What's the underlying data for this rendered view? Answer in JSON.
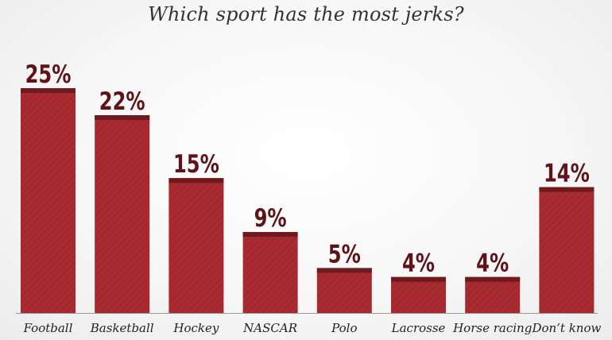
{
  "chart_data": {
    "type": "bar",
    "title": "Which sport has the most jerks?",
    "categories": [
      "Football",
      "Basketball",
      "Hockey",
      "NASCAR",
      "Polo",
      "Lacrosse",
      "Horse racing",
      "Don’t know"
    ],
    "values": [
      25,
      22,
      15,
      9,
      5,
      4,
      4,
      14
    ],
    "value_labels": [
      "25%",
      "22%",
      "15%",
      "9%",
      "5%",
      "4%",
      "4%",
      "14%"
    ],
    "xlabel": "",
    "ylabel": "",
    "ylim": [
      0,
      25
    ],
    "grid": false,
    "legend": "none",
    "colors": {
      "bar": "#a72b30",
      "bar_cap": "#6f1a1f",
      "value_label": "#5e1318",
      "baseline": "#9a9a9a"
    }
  }
}
